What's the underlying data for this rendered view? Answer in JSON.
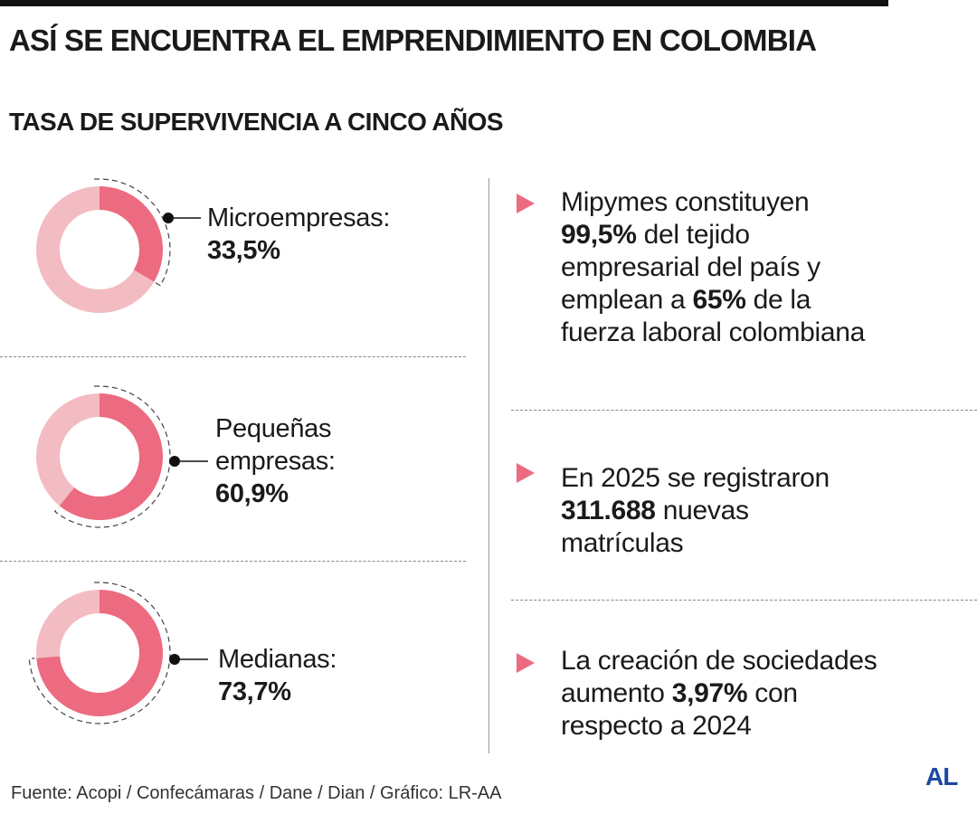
{
  "header": {
    "title": "ASÍ SE ENCUENTRA EL EMPRENDIMIENTO EN COLOMBIA",
    "subtitle": "TASA DE SUPERVIVENCIA A CINCO AÑOS"
  },
  "chart_data": {
    "type": "pie",
    "title": "TASA DE SUPERVIVENCIA A CINCO AÑOS",
    "categories": [
      "Microempresas",
      "Pequeñas empresas",
      "Medianas"
    ],
    "values": [
      33.5,
      60.9,
      73.7
    ],
    "unit": "%",
    "labels": [
      {
        "line1": "Microempresas:",
        "line2": "",
        "value": "33,5%"
      },
      {
        "line1": "Pequeñas",
        "line2": "empresas:",
        "value": "60,9%"
      },
      {
        "line1": "Medianas:",
        "line2": "",
        "value": "73,7%"
      }
    ],
    "colors": {
      "value": "#ec6b80",
      "remainder": "#f3bcc2"
    }
  },
  "facts": [
    {
      "pre": "Mipymes constituyen",
      "bold1": "99,5%",
      "mid": " del tejido",
      "l3": "empresarial del país y",
      "l4pre": "emplean a ",
      "bold2": "65%",
      "l4post": " de la",
      "l5": "fuerza laboral colombiana"
    },
    {
      "pre": "En 2025 se registraron",
      "bold1": "311.688",
      "mid": " nuevas",
      "l3": "matrículas"
    },
    {
      "pre": "La creación de sociedades",
      "l2pre": "aumento ",
      "bold1": "3,97%",
      "mid": " con",
      "l3": "respecto a 2024"
    }
  ],
  "footer": {
    "source": "Fuente: Acopi / Confecámaras / Dane / Dian / Gráfico: LR-AA",
    "logo": "AL"
  }
}
